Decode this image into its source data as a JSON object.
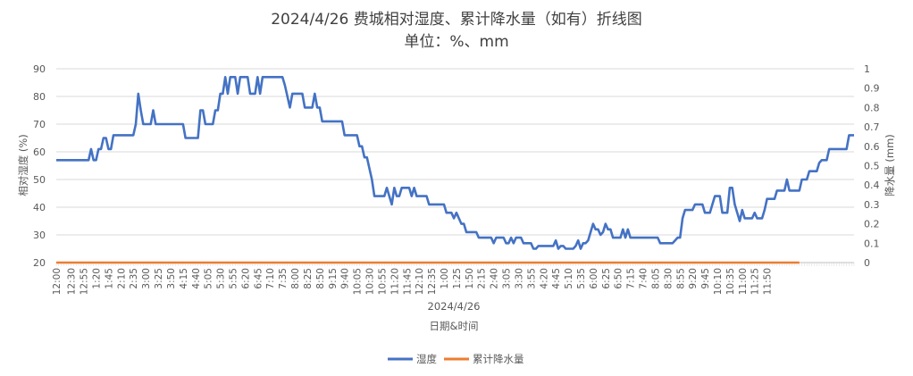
{
  "chart_data": {
    "type": "line",
    "title": "2024/4/26 费城相对湿度、累计降水量（如有）折线图",
    "subtitle": "单位：%、mm",
    "date_label": "2024/4/26",
    "xlabel": "日期&时间",
    "ylabel_left": "相对湿度 (%)",
    "ylabel_right": "降水量 (mm)",
    "ylim_left": [
      20,
      90
    ],
    "yticks_left": [
      "20",
      "30",
      "40",
      "50",
      "60",
      "70",
      "80",
      "90"
    ],
    "ylim_right": [
      0,
      1
    ],
    "yticks_right": [
      "0",
      "0.1",
      "0.2",
      "0.3",
      "0.4",
      "0.5",
      "0.6",
      "0.7",
      "0.8",
      "0.9",
      "1"
    ],
    "x_interval_minutes": 5,
    "x_ticks": [
      "12:00",
      "12:30",
      "12:55",
      "1:20",
      "1:45",
      "2:10",
      "2:35",
      "3:00",
      "3:25",
      "3:50",
      "4:15",
      "4:40",
      "5:05",
      "5:30",
      "5:55",
      "6:20",
      "6:45",
      "7:10",
      "7:35",
      "8:00",
      "8:25",
      "8:50",
      "9:15",
      "9:40",
      "10:05",
      "10:30",
      "10:55",
      "11:20",
      "11:45",
      "12:10",
      "12:35",
      "1:00",
      "1:25",
      "1:50",
      "2:15",
      "2:40",
      "3:05",
      "3:30",
      "3:55",
      "4:20",
      "4:45",
      "5:10",
      "5:35",
      "6:00",
      "6:25",
      "6:50",
      "7:15",
      "7:40",
      "8:05",
      "8:30",
      "8:55",
      "9:20",
      "9:45",
      "10:10",
      "10:35",
      "11:00",
      "11:25",
      "11:50"
    ],
    "x_tick_indices": [
      0,
      6,
      11,
      16,
      21,
      26,
      31,
      36,
      41,
      46,
      51,
      56,
      61,
      66,
      71,
      76,
      81,
      86,
      91,
      96,
      101,
      106,
      111,
      116,
      121,
      126,
      131,
      136,
      141,
      146,
      151,
      156,
      161,
      166,
      171,
      176,
      181,
      186,
      191,
      196,
      201,
      206,
      211,
      216,
      221,
      226,
      231,
      236,
      241,
      246,
      251,
      256,
      261,
      266,
      271,
      276,
      281,
      286
    ],
    "series": [
      {
        "name": "湿度",
        "color": "#4472C4",
        "axis": "left",
        "values": [
          57,
          57,
          57,
          57,
          57,
          57,
          57,
          57,
          57,
          57,
          57,
          57,
          57,
          57,
          61,
          57,
          57,
          61,
          61,
          65,
          65,
          61,
          61,
          66,
          66,
          66,
          66,
          66,
          66,
          66,
          66,
          66,
          70,
          81,
          75,
          70,
          70,
          70,
          70,
          75,
          70,
          70,
          70,
          70,
          70,
          70,
          70,
          70,
          70,
          70,
          70,
          70,
          65,
          65,
          65,
          65,
          65,
          65,
          75,
          75,
          70,
          70,
          70,
          70,
          75,
          75,
          81,
          81,
          87,
          81,
          87,
          87,
          87,
          81,
          87,
          87,
          87,
          87,
          81,
          81,
          81,
          87,
          81,
          87,
          87,
          87,
          87,
          87,
          87,
          87,
          87,
          87,
          84,
          80,
          76,
          81,
          81,
          81,
          81,
          81,
          76,
          76,
          76,
          76,
          81,
          76,
          76,
          71,
          71,
          71,
          71,
          71,
          71,
          71,
          71,
          71,
          66,
          66,
          66,
          66,
          66,
          66,
          62,
          62,
          58,
          58,
          54,
          50,
          44,
          44,
          44,
          44,
          44,
          47,
          44,
          41,
          47,
          44,
          44,
          47,
          47,
          47,
          47,
          44,
          47,
          44,
          44,
          44,
          44,
          44,
          41,
          41,
          41,
          41,
          41,
          41,
          41,
          38,
          38,
          38,
          36,
          38,
          36,
          34,
          34,
          31,
          31,
          31,
          31,
          31,
          29,
          29,
          29,
          29,
          29,
          29,
          27,
          29,
          29,
          29,
          29,
          27,
          27,
          29,
          27,
          29,
          29,
          29,
          27,
          27,
          27,
          27,
          25,
          25,
          26,
          26,
          26,
          26,
          26,
          26,
          26,
          28,
          25,
          26,
          26,
          25,
          25,
          25,
          25,
          26,
          28,
          25,
          27,
          27,
          28,
          31,
          34,
          32,
          32,
          30,
          31,
          34,
          32,
          32,
          29,
          29,
          29,
          29,
          32,
          29,
          32,
          29,
          29,
          29,
          29,
          29,
          29,
          29,
          29,
          29,
          29,
          29,
          29,
          27,
          27,
          27,
          27,
          27,
          27,
          28,
          29,
          29,
          36,
          39,
          39,
          39,
          39,
          41,
          41,
          41,
          41,
          38,
          38,
          38,
          41,
          44,
          44,
          44,
          38,
          38,
          38,
          47,
          47,
          41,
          38,
          35,
          39,
          36,
          36,
          36,
          36,
          38,
          36,
          36,
          36,
          39,
          43,
          43,
          43,
          43,
          46,
          46,
          46,
          46,
          50,
          46,
          46,
          46,
          46,
          46,
          50,
          50,
          50,
          53,
          53,
          53,
          53,
          56,
          57,
          57,
          57,
          61,
          61,
          61,
          61,
          61,
          61,
          61,
          61,
          66,
          66,
          66
        ]
      },
      {
        "name": "累计降水量",
        "color": "#ED7D31",
        "axis": "right",
        "values": [
          0,
          0,
          0,
          0,
          0,
          0,
          0,
          0,
          0,
          0,
          0,
          0,
          0,
          0,
          0,
          0,
          0,
          0,
          0,
          0,
          0,
          0,
          0,
          0,
          0,
          0,
          0,
          0,
          0,
          0,
          0,
          0,
          0,
          0,
          0,
          0,
          0,
          0,
          0,
          0,
          0,
          0,
          0,
          0,
          0,
          0,
          0,
          0,
          0,
          0,
          0,
          0,
          0,
          0,
          0,
          0,
          0,
          0,
          0,
          0,
          0,
          0,
          0,
          0,
          0,
          0,
          0,
          0,
          0,
          0,
          0,
          0,
          0,
          0,
          0,
          0,
          0,
          0,
          0,
          0,
          0,
          0,
          0,
          0,
          0,
          0,
          0,
          0,
          0,
          0,
          0,
          0,
          0,
          0,
          0,
          0,
          0,
          0,
          0,
          0,
          0,
          0,
          0,
          0,
          0,
          0,
          0,
          0,
          0,
          0,
          0,
          0,
          0,
          0,
          0,
          0,
          0,
          0,
          0,
          0,
          0,
          0,
          0,
          0,
          0,
          0,
          0,
          0,
          0,
          0,
          0,
          0,
          0,
          0,
          0,
          0,
          0,
          0,
          0,
          0,
          0,
          0,
          0,
          0,
          0,
          0,
          0,
          0,
          0,
          0,
          0,
          0,
          0,
          0,
          0,
          0,
          0,
          0,
          0,
          0,
          0,
          0,
          0,
          0,
          0,
          0,
          0,
          0,
          0,
          0,
          0,
          0,
          0,
          0,
          0,
          0,
          0,
          0,
          0,
          0,
          0,
          0,
          0,
          0,
          0,
          0,
          0,
          0,
          0,
          0,
          0,
          0,
          0,
          0,
          0,
          0,
          0,
          0,
          0,
          0,
          0,
          0,
          0,
          0,
          0,
          0,
          0,
          0,
          0,
          0,
          0,
          0,
          0,
          0,
          0,
          0,
          0,
          0,
          0,
          0,
          0,
          0,
          0,
          0,
          0,
          0,
          0,
          0,
          0,
          0,
          0,
          0,
          0,
          0,
          0,
          0,
          0,
          0,
          0,
          0,
          0,
          0,
          0,
          0,
          0,
          0,
          0,
          0,
          0,
          0,
          0,
          0,
          0,
          0,
          0,
          0,
          0,
          0,
          0,
          0,
          0,
          0,
          0,
          0,
          0,
          0,
          0,
          0,
          0,
          0,
          0,
          0,
          0,
          0,
          0,
          0,
          0,
          0,
          0,
          0,
          0,
          0,
          0,
          0,
          0,
          0,
          0,
          0,
          0,
          0,
          0,
          0,
          0,
          0,
          0,
          0,
          0,
          0,
          0,
          0
        ]
      }
    ],
    "grid": true,
    "legend_position": "bottom"
  }
}
